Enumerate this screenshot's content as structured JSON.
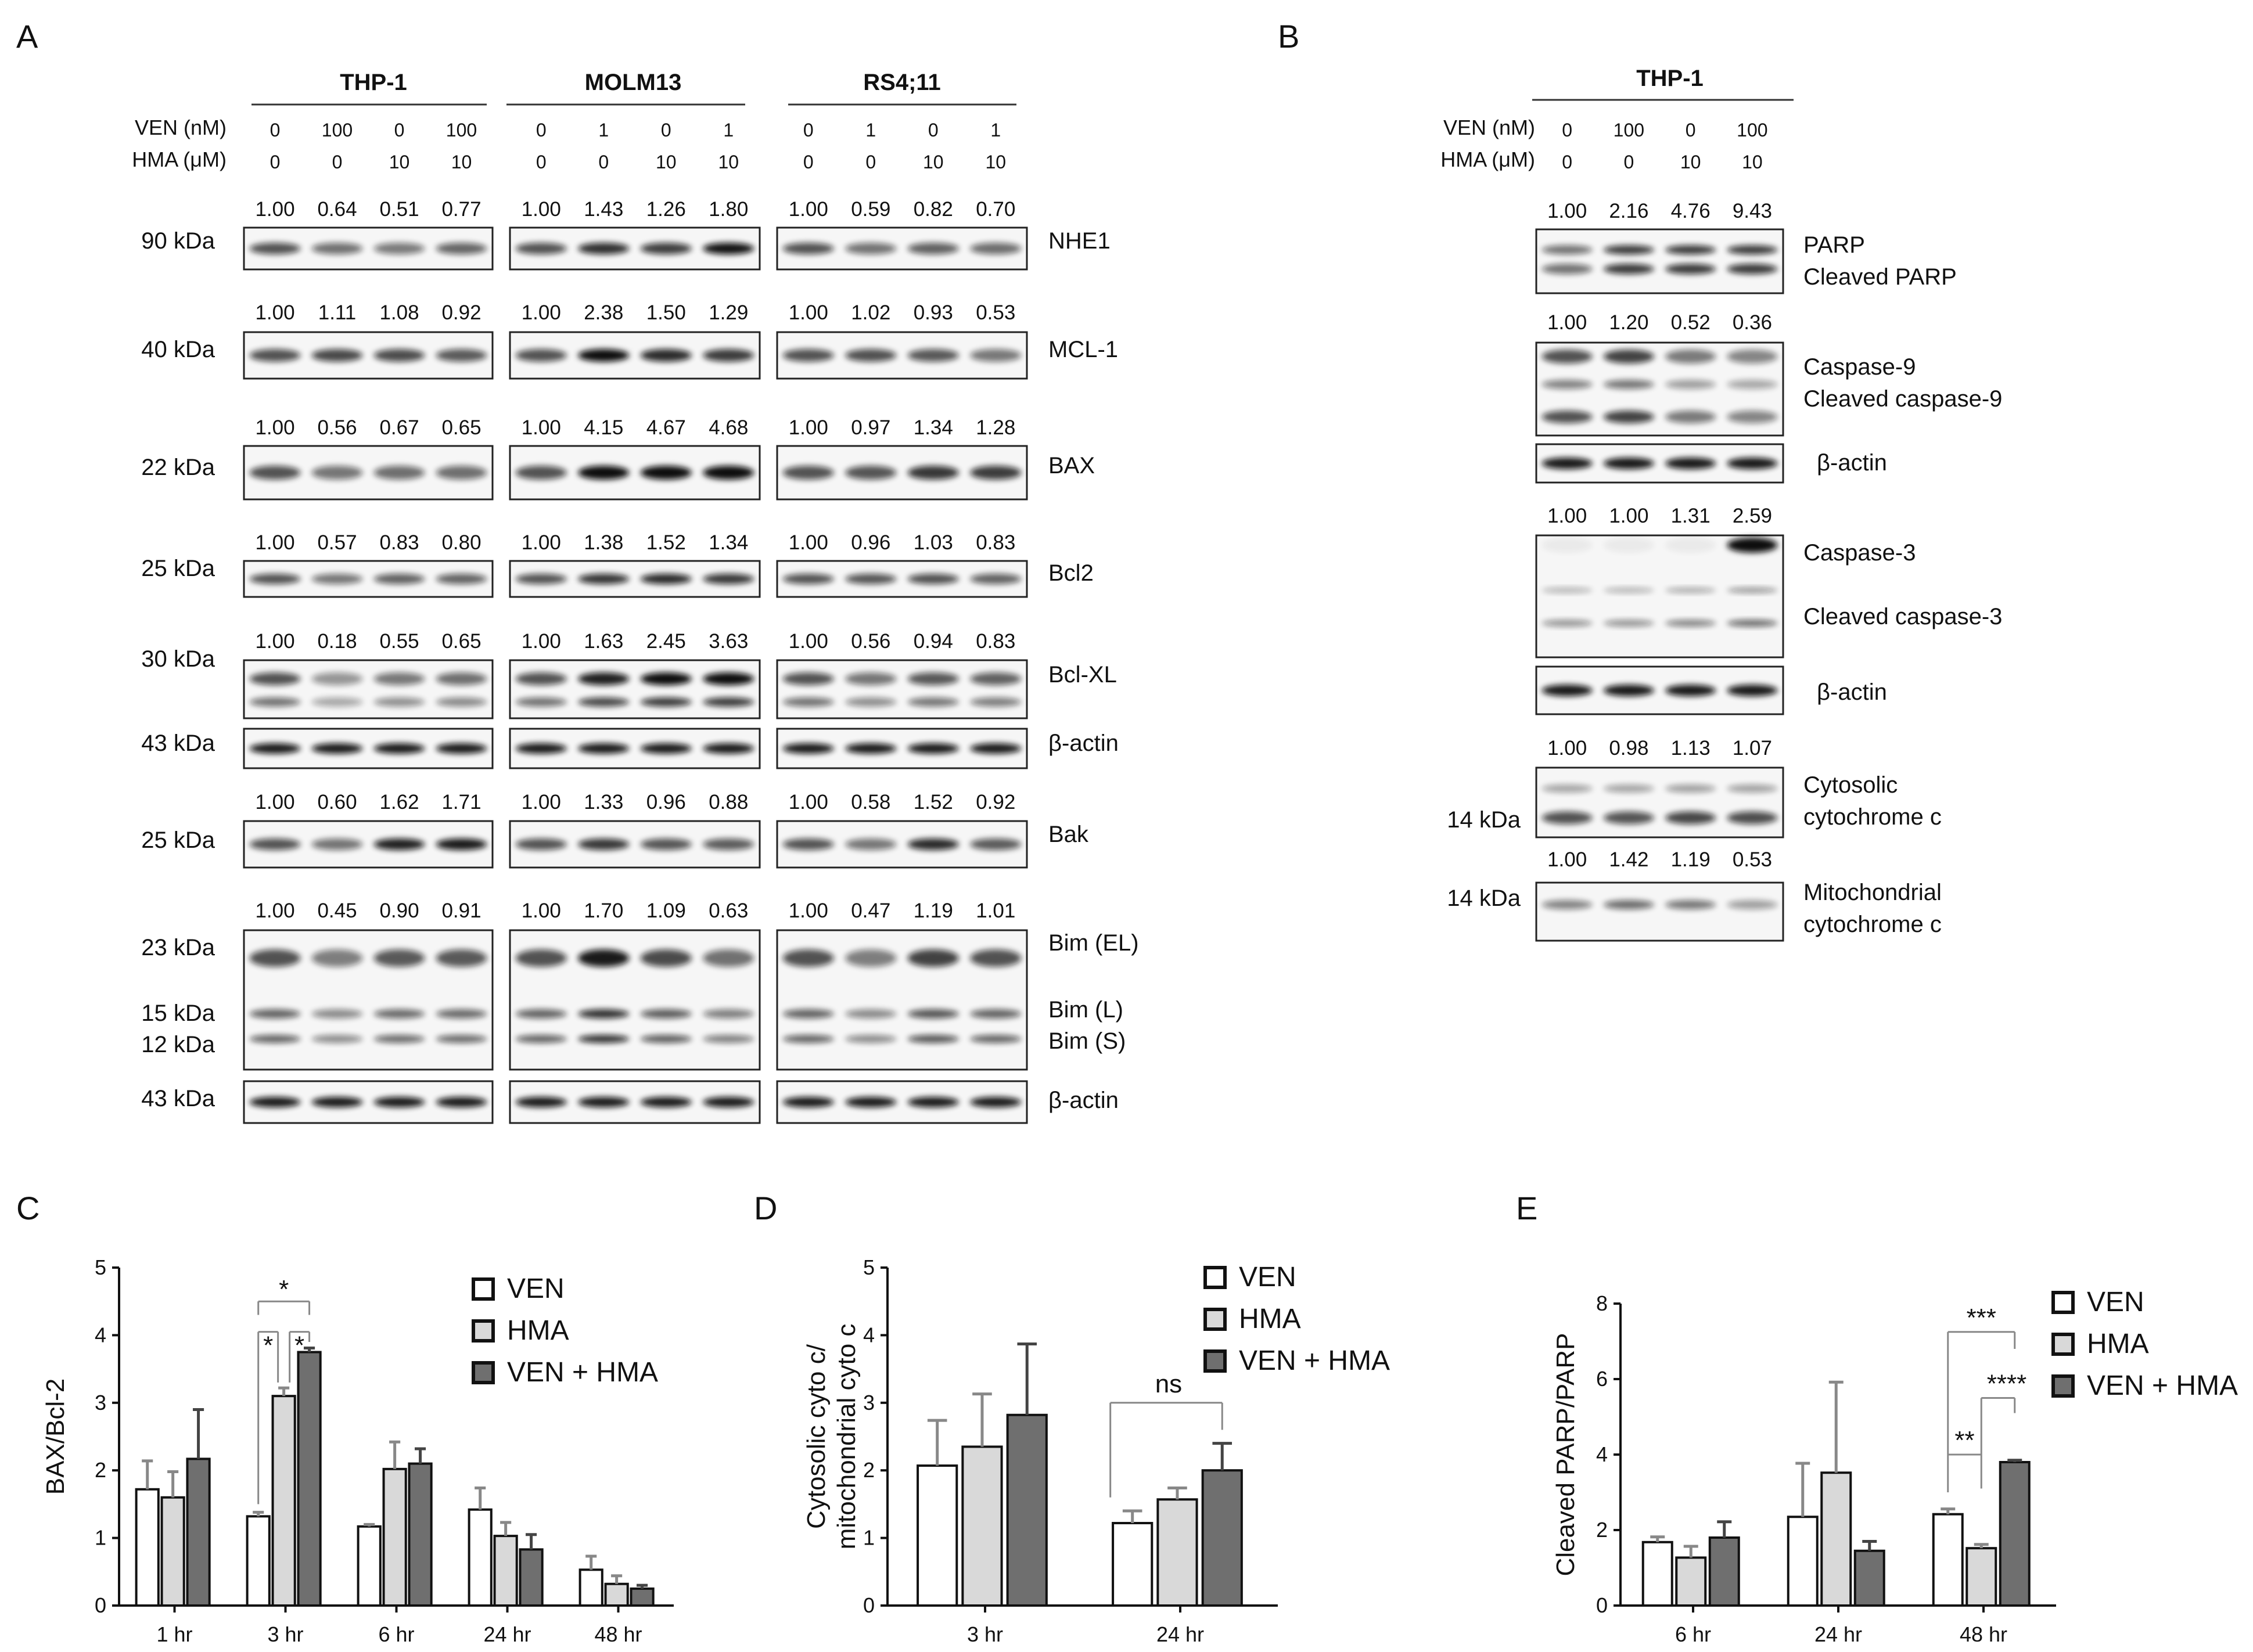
{
  "panels": {
    "A": {
      "letter": "A",
      "cell_lines": [
        "THP-1",
        "MOLM13",
        "RS4;11"
      ],
      "ven_label": "VEN (nM)",
      "hma_label": "HMA (μM)",
      "ven_values": [
        [
          "0",
          "100",
          "0",
          "100"
        ],
        [
          "0",
          "1",
          "0",
          "1"
        ],
        [
          "0",
          "1",
          "0",
          "1"
        ]
      ],
      "hma_values": [
        [
          "0",
          "0",
          "10",
          "10"
        ],
        [
          "0",
          "0",
          "10",
          "10"
        ],
        [
          "0",
          "0",
          "10",
          "10"
        ]
      ],
      "rows": [
        {
          "kda": "90 kDa",
          "labels": [
            "NHE1"
          ],
          "quant": [
            [
              "1.00",
              "0.64",
              "0.51",
              "0.77"
            ],
            [
              "1.00",
              "1.43",
              "1.26",
              "1.80"
            ],
            [
              "1.00",
              "0.59",
              "0.82",
              "0.70"
            ]
          ]
        },
        {
          "kda": "40 kDa",
          "labels": [
            "MCL-1"
          ],
          "quant": [
            [
              "1.00",
              "1.11",
              "1.08",
              "0.92"
            ],
            [
              "1.00",
              "2.38",
              "1.50",
              "1.29"
            ],
            [
              "1.00",
              "1.02",
              "0.93",
              "0.53"
            ]
          ]
        },
        {
          "kda": "22 kDa",
          "labels": [
            "BAX"
          ],
          "quant": [
            [
              "1.00",
              "0.56",
              "0.67",
              "0.65"
            ],
            [
              "1.00",
              "4.15",
              "4.67",
              "4.68"
            ],
            [
              "1.00",
              "0.97",
              "1.34",
              "1.28"
            ]
          ]
        },
        {
          "kda": "25 kDa",
          "labels": [
            "Bcl2"
          ],
          "quant": [
            [
              "1.00",
              "0.57",
              "0.83",
              "0.80"
            ],
            [
              "1.00",
              "1.38",
              "1.52",
              "1.34"
            ],
            [
              "1.00",
              "0.96",
              "1.03",
              "0.83"
            ]
          ]
        },
        {
          "kda": "30 kDa",
          "labels": [
            "Bcl-XL"
          ],
          "quant": [
            [
              "1.00",
              "0.18",
              "0.55",
              "0.65"
            ],
            [
              "1.00",
              "1.63",
              "2.45",
              "3.63"
            ],
            [
              "1.00",
              "0.56",
              "0.94",
              "0.83"
            ]
          ]
        },
        {
          "kda": "43 kDa",
          "labels": [
            "β-actin"
          ],
          "quant": null
        },
        {
          "kda": "25 kDa",
          "labels": [
            "Bak"
          ],
          "quant": [
            [
              "1.00",
              "0.60",
              "1.62",
              "1.71"
            ],
            [
              "1.00",
              "1.33",
              "0.96",
              "0.88"
            ],
            [
              "1.00",
              "0.58",
              "1.52",
              "0.92"
            ]
          ]
        },
        {
          "kda": [
            "23 kDa",
            "15 kDa",
            "12 kDa"
          ],
          "labels": [
            "Bim (EL)",
            "Bim (L)",
            "Bim (S)"
          ],
          "quant": [
            [
              "1.00",
              "0.45",
              "0.90",
              "0.91"
            ],
            [
              "1.00",
              "1.70",
              "1.09",
              "0.63"
            ],
            [
              "1.00",
              "0.47",
              "1.19",
              "1.01"
            ]
          ]
        },
        {
          "kda": "43 kDa",
          "labels": [
            "β-actin"
          ],
          "quant": null
        }
      ]
    },
    "B": {
      "letter": "B",
      "cell_line": "THP-1",
      "ven_label": "VEN (nM)",
      "hma_label": "HMA (μM)",
      "ven_values": [
        "0",
        "100",
        "0",
        "100"
      ],
      "hma_values": [
        "0",
        "0",
        "10",
        "10"
      ],
      "rows": [
        {
          "kda": "",
          "labels": [
            "PARP",
            "Cleaved PARP"
          ],
          "quant": [
            "1.00",
            "2.16",
            "4.76",
            "9.43"
          ]
        },
        {
          "kda": "",
          "labels": [
            "Caspase-9",
            "Cleaved caspase-9"
          ],
          "quant": [
            "1.00",
            "1.20",
            "0.52",
            "0.36"
          ]
        },
        {
          "kda": "",
          "labels": [
            "β-actin"
          ],
          "quant": null
        },
        {
          "kda": "",
          "labels": [
            "Caspase-3",
            "Cleaved caspase-3"
          ],
          "quant": [
            "1.00",
            "1.00",
            "1.31",
            "2.59"
          ]
        },
        {
          "kda": "",
          "labels": [
            "β-actin"
          ],
          "quant": null
        },
        {
          "kda": "14 kDa",
          "labels": [
            "Cytosolic",
            "cytochrome c"
          ],
          "quant": [
            "1.00",
            "0.98",
            "1.13",
            "1.07"
          ]
        },
        {
          "kda": "14 kDa",
          "labels": [
            "Mitochondrial",
            "cytochrome c"
          ],
          "quant": [
            "1.00",
            "1.42",
            "1.19",
            "0.53"
          ]
        }
      ]
    }
  },
  "chart_data": [
    {
      "panel": "C",
      "type": "bar",
      "ylabel": "BAX/Bcl-2",
      "ylim": [
        0,
        5
      ],
      "yticks": [
        "0",
        "1",
        "2",
        "3",
        "4",
        "5"
      ],
      "categories": [
        "1 hr",
        "3 hr",
        "6 hr",
        "24 hr",
        "48 hr"
      ],
      "series": [
        {
          "name": "VEN",
          "values": [
            1.72,
            1.32,
            1.17,
            1.42,
            0.53
          ],
          "errors": [
            0.42,
            0.06,
            0.03,
            0.32,
            0.2
          ],
          "color": "#ffffff"
        },
        {
          "name": "HMA",
          "values": [
            1.6,
            3.1,
            2.02,
            1.03,
            0.32
          ],
          "errors": [
            0.38,
            0.12,
            0.4,
            0.2,
            0.12
          ],
          "color": "#d9d9d9"
        },
        {
          "name": "VEN + HMA",
          "values": [
            2.17,
            3.75,
            2.1,
            0.83,
            0.25
          ],
          "errors": [
            0.73,
            0.06,
            0.22,
            0.22,
            0.05
          ],
          "color": "#6f6f6f"
        }
      ],
      "annotations": [
        "*",
        "*",
        "*"
      ]
    },
    {
      "panel": "D",
      "type": "bar",
      "ylabel": [
        "Cytosolic cyto c/",
        "mitochondrial cyto c"
      ],
      "ylim": [
        0,
        5
      ],
      "yticks": [
        "0",
        "1",
        "2",
        "3",
        "4",
        "5"
      ],
      "categories": [
        "3 hr",
        "24 hr"
      ],
      "series": [
        {
          "name": "VEN",
          "values": [
            2.07,
            1.22
          ],
          "errors": [
            0.67,
            0.18
          ],
          "color": "#ffffff"
        },
        {
          "name": "HMA",
          "values": [
            2.35,
            1.57
          ],
          "errors": [
            0.78,
            0.17
          ],
          "color": "#d9d9d9"
        },
        {
          "name": "VEN + HMA",
          "values": [
            2.82,
            2.0
          ],
          "errors": [
            1.05,
            0.4
          ],
          "color": "#6f6f6f"
        }
      ],
      "annotations": [
        "ns"
      ]
    },
    {
      "panel": "E",
      "type": "bar",
      "ylabel": "Cleaved PARP/PARP",
      "ylim": [
        0,
        8
      ],
      "yticks": [
        "0",
        "2",
        "4",
        "6",
        "8"
      ],
      "categories": [
        "6 hr",
        "24 hr",
        "48 hr"
      ],
      "series": [
        {
          "name": "VEN",
          "values": [
            1.68,
            2.35,
            2.42
          ],
          "errors": [
            0.14,
            1.42,
            0.14
          ],
          "color": "#ffffff"
        },
        {
          "name": "HMA",
          "values": [
            1.27,
            3.52,
            1.52
          ],
          "errors": [
            0.3,
            2.4,
            0.1
          ],
          "color": "#d9d9d9"
        },
        {
          "name": "VEN + HMA",
          "values": [
            1.8,
            1.45,
            3.8
          ],
          "errors": [
            0.42,
            0.25,
            0.05
          ],
          "color": "#6f6f6f"
        }
      ],
      "annotations": [
        "***",
        "****",
        "**"
      ]
    }
  ],
  "chart_letters": [
    "C",
    "D",
    "E"
  ]
}
